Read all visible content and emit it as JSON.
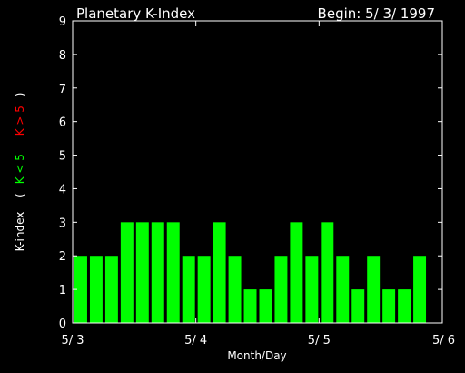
{
  "chart_data": {
    "type": "bar",
    "title": "Planetary K-Index",
    "subtitle": "Begin: 5/ 3/ 1997",
    "xlabel": "Month/Day",
    "ylabel": {
      "main": "K-index",
      "paren_open": "(",
      "green_part": "K < 5",
      "red_part": "K > 5",
      "paren_close": ")"
    },
    "ylim": [
      0,
      9
    ],
    "yticks": [
      "0",
      "1",
      "2",
      "3",
      "4",
      "5",
      "6",
      "7",
      "8",
      "9"
    ],
    "xlim": [
      0,
      24
    ],
    "xticks": [
      {
        "pos": 0,
        "label": "5/ 3"
      },
      {
        "pos": 8,
        "label": "5/ 4"
      },
      {
        "pos": 16,
        "label": "5/ 5"
      },
      {
        "pos": 24,
        "label": "5/ 6"
      }
    ],
    "values": [
      2,
      2,
      2,
      3,
      3,
      3,
      3,
      2,
      2,
      3,
      2,
      1,
      1,
      2,
      3,
      2,
      3,
      2,
      1,
      2,
      1,
      1,
      2
    ],
    "bar_color": "#00ff00",
    "high_color": "#ff0000",
    "grid": false
  }
}
